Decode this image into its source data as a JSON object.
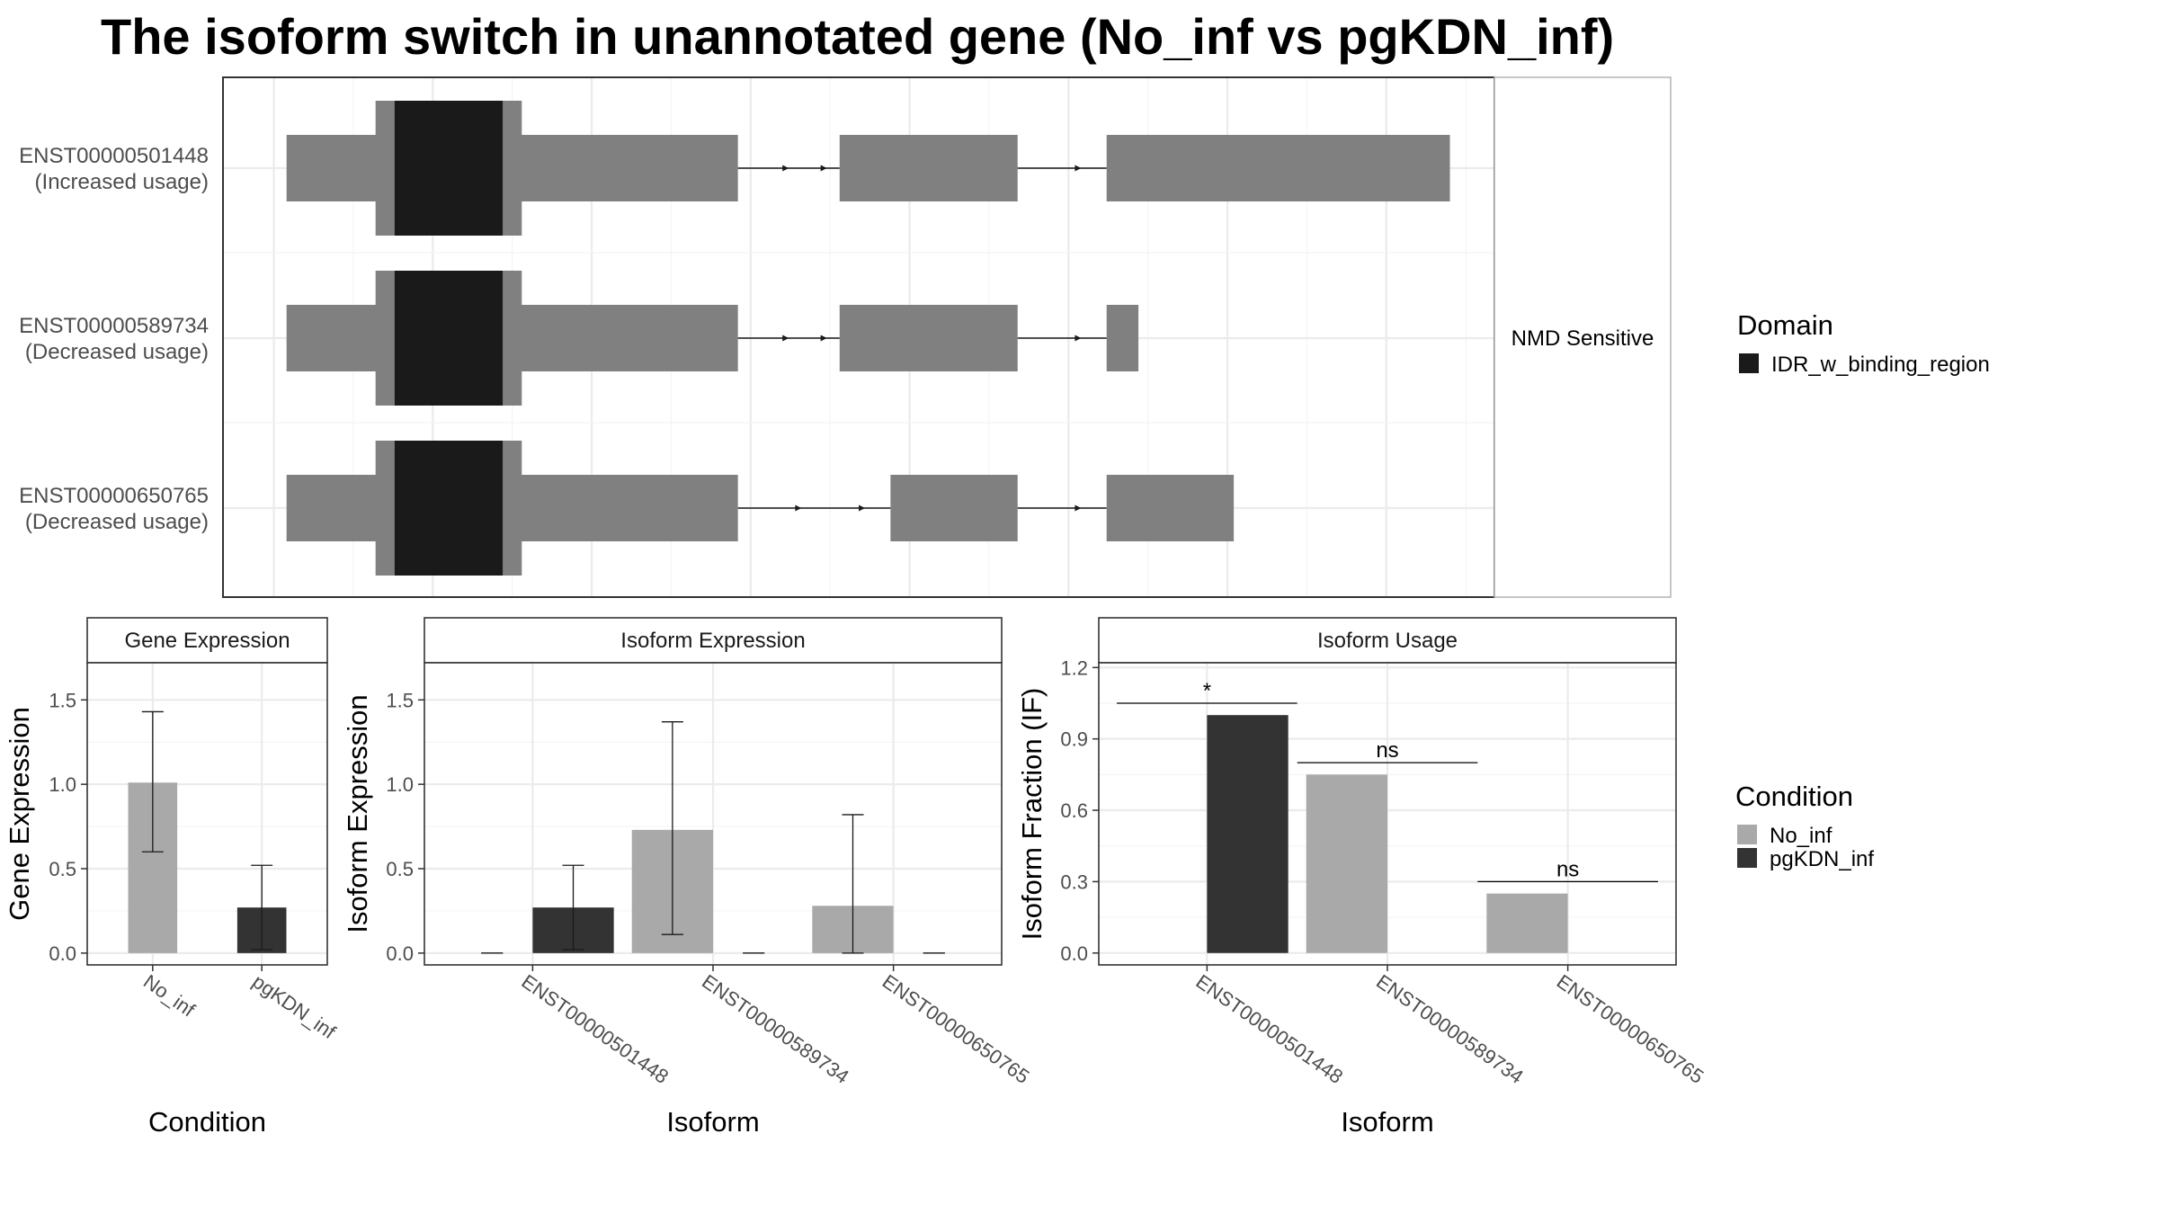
{
  "title": "The isoform switch in unannotated gene (No_inf vs pgKDN_inf)",
  "colors": {
    "exon": "#808080",
    "domain": "#1a1a1a",
    "No_inf": "#a9a9a9",
    "pgKDN_inf": "#333333",
    "panel_border": "#333333",
    "strip_bg": "#ffffff"
  },
  "legend_domain": {
    "title": "Domain",
    "items": [
      {
        "label": "IDR_w_binding_region",
        "color": "#1a1a1a"
      }
    ]
  },
  "legend_condition": {
    "title": "Condition",
    "items": [
      {
        "label": "No_inf",
        "color": "#a9a9a9"
      },
      {
        "label": "pgKDN_inf",
        "color": "#333333"
      }
    ]
  },
  "chart_data": [
    {
      "type": "transcript-structure",
      "facet_label": "NMD Sensitive",
      "transcripts": [
        {
          "id": "ENST00000501448",
          "usage": "(Increased usage)",
          "exons": [
            [
              0.05,
              0.405
            ],
            [
              0.485,
              0.625
            ],
            [
              0.695,
              0.965
            ]
          ],
          "domains": [
            {
              "name": "IDR_w_binding_region",
              "range": [
                0.135,
                0.22
              ],
              "pad": [
                0.12,
                0.235
              ]
            }
          ],
          "intron_arrows": [
            [
              0.445,
              0.475
            ],
            [
              0.55,
              0.675
            ]
          ]
        },
        {
          "id": "ENST00000589734",
          "usage": "(Decreased usage)",
          "exons": [
            [
              0.05,
              0.405
            ],
            [
              0.485,
              0.625
            ],
            [
              0.695,
              0.72
            ]
          ],
          "domains": [
            {
              "name": "IDR_w_binding_region",
              "range": [
                0.135,
                0.22
              ],
              "pad": [
                0.12,
                0.235
              ]
            }
          ],
          "intron_arrows": [
            [
              0.445,
              0.475
            ],
            [
              0.55,
              0.675
            ]
          ]
        },
        {
          "id": "ENST00000650765",
          "usage": "(Decreased usage)",
          "exons": [
            [
              0.05,
              0.405
            ],
            [
              0.525,
              0.625
            ],
            [
              0.695,
              0.795
            ]
          ],
          "domains": [
            {
              "name": "IDR_w_binding_region",
              "range": [
                0.135,
                0.22
              ],
              "pad": [
                0.12,
                0.235
              ]
            }
          ],
          "intron_arrows": [
            [
              0.455,
              0.505
            ],
            [
              0.55,
              0.675
            ]
          ]
        }
      ]
    },
    {
      "type": "bar",
      "panel": "Gene Expression",
      "xlabel": "Condition",
      "ylabel": "Gene Expression",
      "ylim": [
        -0.07,
        1.72
      ],
      "yticks": [
        "0.0",
        "0.5",
        "1.0",
        "1.5"
      ],
      "ytick_values": [
        0,
        0.5,
        1.0,
        1.5
      ],
      "categories": [
        "No_inf",
        "pgKDN_inf"
      ],
      "bars": [
        {
          "category": "No_inf",
          "condition": "No_inf",
          "value": 1.01,
          "err": [
            0.6,
            1.43
          ]
        },
        {
          "category": "pgKDN_inf",
          "condition": "pgKDN_inf",
          "value": 0.27,
          "err": [
            0.02,
            0.52
          ]
        }
      ]
    },
    {
      "type": "bar",
      "panel": "Isoform Expression",
      "xlabel": "Isoform",
      "ylabel": "Isoform Expression",
      "ylim": [
        -0.07,
        1.72
      ],
      "yticks": [
        "0.0",
        "0.5",
        "1.0",
        "1.5"
      ],
      "ytick_values": [
        0,
        0.5,
        1.0,
        1.5
      ],
      "categories": [
        "ENST00000501448",
        "ENST00000589734",
        "ENST00000650765"
      ],
      "series": [
        {
          "name": "No_inf",
          "values": [
            0.0,
            0.73,
            0.28
          ],
          "err": [
            [
              0,
              0
            ],
            [
              0.11,
              1.37
            ],
            [
              0.0,
              0.82
            ]
          ]
        },
        {
          "name": "pgKDN_inf",
          "values": [
            0.27,
            0.0,
            0.0
          ],
          "err": [
            [
              0.02,
              0.52
            ],
            [
              0,
              0
            ],
            [
              0,
              0
            ]
          ]
        }
      ]
    },
    {
      "type": "bar",
      "panel": "Isoform Usage",
      "xlabel": "Isoform",
      "ylabel": "Isoform Fraction (IF)",
      "ylim": [
        -0.05,
        1.22
      ],
      "yticks": [
        "0.0",
        "0.3",
        "0.6",
        "0.9",
        "1.2"
      ],
      "ytick_values": [
        0,
        0.3,
        0.6,
        0.9,
        1.2
      ],
      "categories": [
        "ENST00000501448",
        "ENST00000589734",
        "ENST00000650765"
      ],
      "series": [
        {
          "name": "No_inf",
          "values": [
            0.0,
            0.75,
            0.25
          ]
        },
        {
          "name": "pgKDN_inf",
          "values": [
            1.0,
            0.0,
            0.0
          ]
        }
      ],
      "significance": [
        {
          "category": "ENST00000501448",
          "label": "*",
          "y": 1.05
        },
        {
          "category": "ENST00000589734",
          "label": "ns",
          "y": 0.8
        },
        {
          "category": "ENST00000650765",
          "label": "ns",
          "y": 0.3
        }
      ]
    }
  ]
}
